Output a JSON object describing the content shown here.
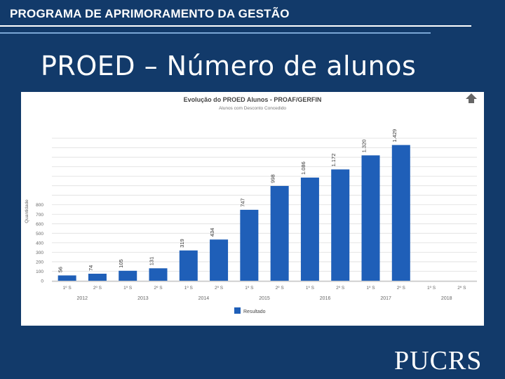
{
  "header": {
    "program_title": "PROGRAMA DE APRIMORAMENTO DA GESTÃO",
    "slide_title": "PROED – Número de alunos",
    "logo_text": "PUCRS"
  },
  "colors": {
    "background": "#123a6a",
    "bar": "#1f5fb8",
    "grid": "#dddddd"
  },
  "chart_data": {
    "type": "bar",
    "title": "Evolução do PROED Alunos - PROAF/GERFIN",
    "subtitle": "Alunos com Desconto Concedido",
    "ylabel": "Quantidade",
    "xlabel": "",
    "ylim": [
      0,
      1500
    ],
    "yticks": [
      0,
      100,
      200,
      300,
      400,
      500,
      600,
      700,
      800
    ],
    "categories": [
      "1º S",
      "2º S",
      "1º S",
      "2º S",
      "1º S",
      "2º S",
      "1º S",
      "2º S",
      "1º S",
      "2º S",
      "1º S",
      "2º S",
      "1º S",
      "2º S"
    ],
    "years": [
      "2012",
      "2013",
      "2014",
      "2015",
      "2016",
      "2017",
      "2018"
    ],
    "series": [
      {
        "name": "Resultado",
        "values": [
          56,
          74,
          105,
          131,
          319,
          434,
          747,
          998,
          1086,
          1172,
          1320,
          1429,
          null,
          null
        ],
        "labels": [
          "56",
          "74",
          "105",
          "131",
          "319",
          "434",
          "747",
          "998",
          "1.086",
          "1.172",
          "1.320",
          "1.429",
          "",
          ""
        ]
      }
    ],
    "legend_position": "bottom"
  }
}
